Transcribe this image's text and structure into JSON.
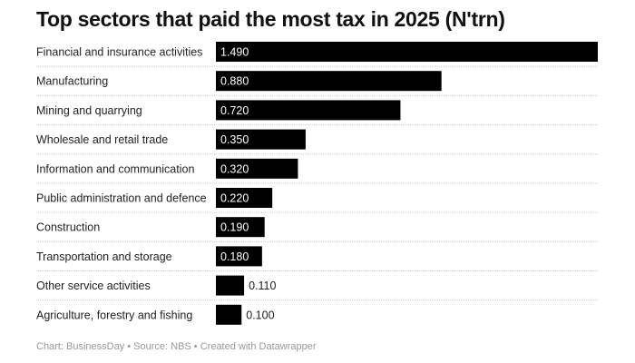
{
  "chart_data": {
    "type": "bar",
    "orientation": "horizontal",
    "title": "Top sectors that paid the most tax in 2025 (N'trn)",
    "categories": [
      "Financial and insurance activities",
      "Manufacturing",
      "Mining and quarrying",
      "Wholesale and retail trade",
      "Information and communication",
      "Public administration and defence",
      "Construction",
      "Transportation and storage",
      "Other service activities",
      "Agriculture, forestry and fishing"
    ],
    "values": [
      1.49,
      0.88,
      0.72,
      0.35,
      0.32,
      0.22,
      0.19,
      0.18,
      0.11,
      0.1
    ],
    "value_labels": [
      "1.490",
      "0.880",
      "0.720",
      "0.350",
      "0.320",
      "0.220",
      "0.190",
      "0.180",
      "0.110",
      "0.100"
    ],
    "xlim": [
      0,
      1.49
    ],
    "bar_color": "#000000",
    "grid": false,
    "xlabel": "",
    "ylabel": ""
  },
  "footer": "Chart: BusinessDay • Source: NBS • Created with Datawrapper"
}
